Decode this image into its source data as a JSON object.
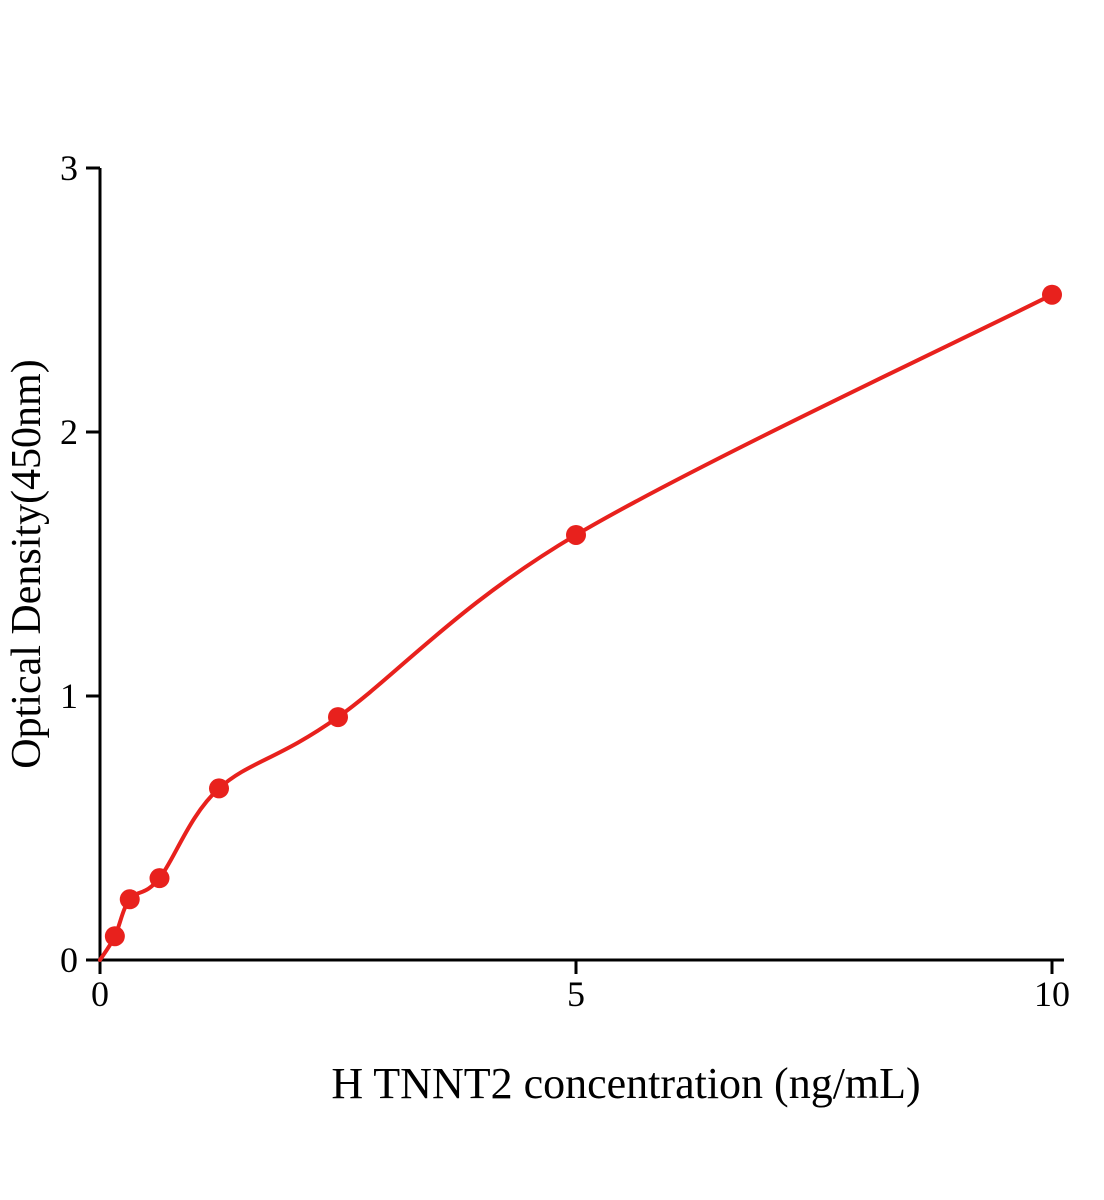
{
  "chart_data": {
    "type": "scatter",
    "title": "",
    "xlabel": "H TNNT2 concentration (ng/mL)",
    "ylabel": "Optical Density(450nm)",
    "x": [
      0.156,
      0.3125,
      0.625,
      1.25,
      2.5,
      5,
      10
    ],
    "y": [
      0.09,
      0.23,
      0.31,
      0.65,
      0.92,
      1.61,
      2.52
    ],
    "curve_start": {
      "x": 0,
      "y": 0
    },
    "xlim": [
      0,
      10
    ],
    "ylim": [
      0,
      3
    ],
    "xticks": [
      0,
      5,
      10
    ],
    "yticks": [
      0,
      1,
      2,
      3
    ],
    "grid": false,
    "legend": null,
    "series_color": "#e8211d",
    "axis_color": "#000000",
    "marker": "circle",
    "marker_radius": 10,
    "line_width": 4
  }
}
